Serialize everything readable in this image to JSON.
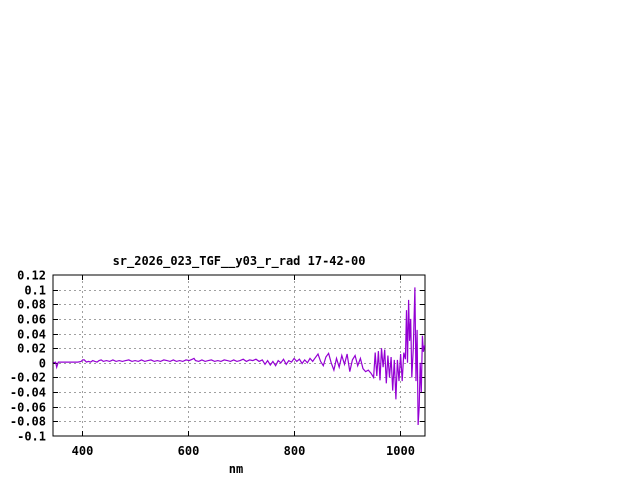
{
  "page": {
    "background": "#ffffff"
  },
  "chart_data": {
    "type": "line",
    "title": "sr_2026_023_TGF__y03_r_rad 17-42-00",
    "xlabel": "nm",
    "ylabel": "",
    "xlim": [
      345,
      1047
    ],
    "ylim": [
      -0.1,
      0.12
    ],
    "x_ticks": [
      400,
      600,
      800,
      1000
    ],
    "y_ticks": [
      0.12,
      0.1,
      0.08,
      0.06,
      0.04,
      0.02,
      0,
      -0.02,
      -0.04,
      -0.06,
      -0.08,
      -0.1
    ],
    "grid": true,
    "legend_position": "none",
    "colors": {
      "line": "#9400d3",
      "grid": "#a0a0a0",
      "border": "#000000",
      "text": "#000000"
    },
    "series": [
      {
        "name": "sr_2026_023_TGF__y03_r_rad",
        "points": [
          [
            346,
            0.0
          ],
          [
            350,
            0.001
          ],
          [
            352,
            -0.006
          ],
          [
            355,
            0.001
          ],
          [
            362,
            0.001
          ],
          [
            368,
            0.001
          ],
          [
            374,
            0.001
          ],
          [
            380,
            0.001
          ],
          [
            386,
            0.001
          ],
          [
            392,
            0.001
          ],
          [
            398,
            0.002
          ],
          [
            401,
            0.004
          ],
          [
            404,
            0.004
          ],
          [
            408,
            0.001
          ],
          [
            412,
            0.002
          ],
          [
            416,
            0.001
          ],
          [
            420,
            0.003
          ],
          [
            424,
            0.002
          ],
          [
            428,
            0.001
          ],
          [
            432,
            0.003
          ],
          [
            436,
            0.004
          ],
          [
            440,
            0.002
          ],
          [
            446,
            0.003
          ],
          [
            452,
            0.002
          ],
          [
            458,
            0.004
          ],
          [
            464,
            0.002
          ],
          [
            470,
            0.003
          ],
          [
            476,
            0.002
          ],
          [
            482,
            0.003
          ],
          [
            488,
            0.004
          ],
          [
            494,
            0.002
          ],
          [
            500,
            0.003
          ],
          [
            506,
            0.002
          ],
          [
            512,
            0.004
          ],
          [
            518,
            0.002
          ],
          [
            524,
            0.003
          ],
          [
            530,
            0.004
          ],
          [
            536,
            0.002
          ],
          [
            542,
            0.003
          ],
          [
            548,
            0.002
          ],
          [
            554,
            0.004
          ],
          [
            560,
            0.003
          ],
          [
            566,
            0.002
          ],
          [
            572,
            0.004
          ],
          [
            578,
            0.002
          ],
          [
            584,
            0.003
          ],
          [
            590,
            0.002
          ],
          [
            596,
            0.004
          ],
          [
            602,
            0.003
          ],
          [
            608,
            0.005
          ],
          [
            611,
            0.006
          ],
          [
            614,
            0.003
          ],
          [
            620,
            0.002
          ],
          [
            626,
            0.004
          ],
          [
            632,
            0.002
          ],
          [
            638,
            0.003
          ],
          [
            644,
            0.004
          ],
          [
            650,
            0.002
          ],
          [
            656,
            0.003
          ],
          [
            662,
            0.002
          ],
          [
            668,
            0.004
          ],
          [
            674,
            0.003
          ],
          [
            680,
            0.002
          ],
          [
            686,
            0.004
          ],
          [
            692,
            0.002
          ],
          [
            698,
            0.003
          ],
          [
            704,
            0.005
          ],
          [
            710,
            0.002
          ],
          [
            716,
            0.004
          ],
          [
            722,
            0.003
          ],
          [
            728,
            0.005
          ],
          [
            734,
            0.002
          ],
          [
            740,
            0.004
          ],
          [
            745,
            -0.002
          ],
          [
            750,
            0.003
          ],
          [
            755,
            -0.003
          ],
          [
            760,
            0.002
          ],
          [
            765,
            -0.004
          ],
          [
            770,
            0.003
          ],
          [
            775,
            0.0
          ],
          [
            780,
            0.005
          ],
          [
            785,
            -0.002
          ],
          [
            790,
            0.003
          ],
          [
            795,
            0.001
          ],
          [
            800,
            0.006
          ],
          [
            805,
            0.002
          ],
          [
            810,
            0.005
          ],
          [
            815,
            -0.001
          ],
          [
            820,
            0.004
          ],
          [
            825,
            0.0
          ],
          [
            830,
            0.006
          ],
          [
            835,
            0.002
          ],
          [
            840,
            0.007
          ],
          [
            845,
            0.012
          ],
          [
            850,
            0.002
          ],
          [
            855,
            -0.004
          ],
          [
            860,
            0.008
          ],
          [
            865,
            0.013
          ],
          [
            870,
            0.0
          ],
          [
            875,
            -0.01
          ],
          [
            880,
            0.006
          ],
          [
            885,
            -0.006
          ],
          [
            890,
            0.01
          ],
          [
            895,
            -0.002
          ],
          [
            900,
            0.012
          ],
          [
            905,
            -0.012
          ],
          [
            910,
            0.004
          ],
          [
            915,
            0.01
          ],
          [
            920,
            -0.004
          ],
          [
            925,
            0.006
          ],
          [
            930,
            -0.008
          ],
          [
            935,
            -0.012
          ],
          [
            940,
            -0.01
          ],
          [
            945,
            -0.014
          ],
          [
            950,
            -0.02
          ],
          [
            953,
            0.014
          ],
          [
            956,
            -0.018
          ],
          [
            959,
            0.016
          ],
          [
            962,
            -0.024
          ],
          [
            965,
            0.02
          ],
          [
            968,
            -0.006
          ],
          [
            971,
            0.018
          ],
          [
            974,
            -0.028
          ],
          [
            977,
            0.01
          ],
          [
            980,
            -0.02
          ],
          [
            983,
            0.008
          ],
          [
            986,
            -0.038
          ],
          [
            989,
            0.004
          ],
          [
            992,
            -0.05
          ],
          [
            995,
            0.004
          ],
          [
            998,
            -0.025
          ],
          [
            1001,
            0.012
          ],
          [
            1004,
            -0.025
          ],
          [
            1007,
            0.014
          ],
          [
            1010,
            0.005
          ],
          [
            1012,
            0.072
          ],
          [
            1014,
            0.0
          ],
          [
            1016,
            0.086
          ],
          [
            1018,
            0.03
          ],
          [
            1020,
            0.06
          ],
          [
            1022,
            -0.02
          ],
          [
            1025,
            0.02
          ],
          [
            1028,
            0.103
          ],
          [
            1030,
            -0.025
          ],
          [
            1032,
            0.045
          ],
          [
            1034,
            -0.085
          ],
          [
            1036,
            -0.06
          ],
          [
            1038,
            0.0
          ],
          [
            1040,
            -0.04
          ],
          [
            1042,
            0.037
          ],
          [
            1044,
            0.015
          ],
          [
            1046,
            0.024
          ]
        ]
      }
    ]
  }
}
